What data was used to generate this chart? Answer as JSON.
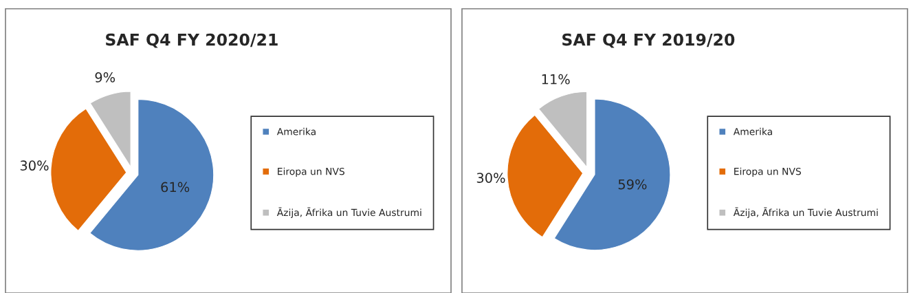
{
  "chart_data": [
    {
      "type": "pie",
      "title": "SAF Q4 FY 2020/21",
      "categories": [
        "Amerika",
        "Eiropa un NVS",
        "Āzija, Āfrika un Tuvie Austrumi"
      ],
      "values": [
        61,
        30,
        9
      ],
      "value_labels": [
        "61%",
        "30%",
        "9%"
      ],
      "colors": [
        "#4f81bd",
        "#e36c09",
        "#bfbfbf"
      ],
      "legend": "right"
    },
    {
      "type": "pie",
      "title": "SAF Q4 FY 2019/20",
      "categories": [
        "Amerika",
        "Eiropa un NVS",
        "Āzija, Āfrika un Tuvie Austrumi"
      ],
      "values": [
        59,
        30,
        11
      ],
      "value_labels": [
        "59%",
        "30%",
        "11%"
      ],
      "colors": [
        "#4f81bd",
        "#e36c09",
        "#bfbfbf"
      ],
      "legend": "right"
    }
  ]
}
